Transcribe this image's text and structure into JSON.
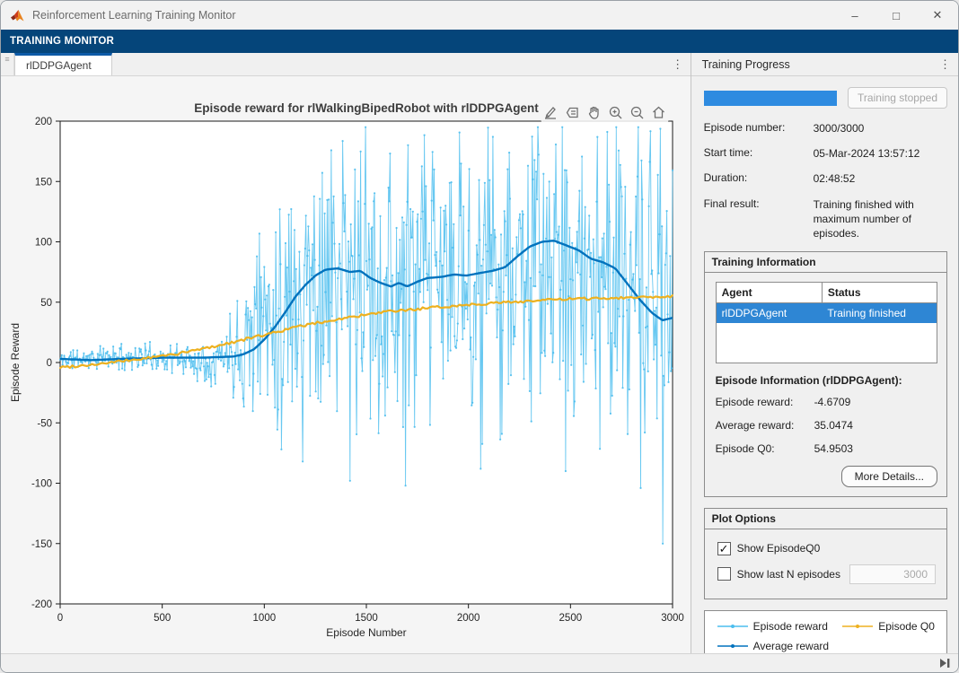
{
  "window": {
    "title": "Reinforcement Learning Training Monitor",
    "controls": {
      "minimize": "–",
      "maximize": "□",
      "close": "✕"
    }
  },
  "ribbon": {
    "label": "TRAINING MONITOR"
  },
  "tabs": {
    "active_tab": "rlDDPGAgent",
    "menu_icon": "⋮",
    "grip_icon": "≡"
  },
  "chart_data": {
    "type": "line",
    "title": "Episode reward for rlWalkingBipedRobot with rlDDPGAgent",
    "xlabel": "Episode Number",
    "ylabel": "Episode Reward",
    "xlim": [
      0,
      3000
    ],
    "ylim": [
      -200,
      200
    ],
    "xticks": [
      0,
      500,
      1000,
      1500,
      2000,
      2500,
      3000
    ],
    "yticks": [
      -200,
      -150,
      -100,
      -50,
      0,
      50,
      100,
      150,
      200
    ],
    "grid": false,
    "box": true,
    "legend_position": "side-panel-bottom",
    "series": [
      {
        "name": "Episode reward",
        "color": "#4DBEEE",
        "render": "noisy",
        "seed": 11,
        "step": 4,
        "envelope": [
          [
            0,
            2,
            8
          ],
          [
            200,
            4,
            9
          ],
          [
            400,
            5,
            10
          ],
          [
            600,
            3,
            13
          ],
          [
            700,
            1,
            16
          ],
          [
            800,
            6,
            24
          ],
          [
            900,
            18,
            50
          ],
          [
            1000,
            42,
            80
          ],
          [
            1100,
            55,
            95
          ],
          [
            1200,
            65,
            105
          ],
          [
            1350,
            70,
            112
          ],
          [
            1500,
            65,
            115
          ],
          [
            1700,
            62,
            118
          ],
          [
            1900,
            70,
            115
          ],
          [
            2100,
            75,
            113
          ],
          [
            2300,
            80,
            110
          ],
          [
            2500,
            76,
            114
          ],
          [
            2700,
            70,
            120
          ],
          [
            2850,
            58,
            128
          ],
          [
            3000,
            45,
            132
          ]
        ],
        "spikes": [
          [
            1085,
            -72
          ],
          [
            1190,
            -82
          ],
          [
            1420,
            -98
          ],
          [
            1692,
            -102
          ],
          [
            2060,
            -88
          ],
          [
            2476,
            -90
          ],
          [
            2845,
            -104
          ],
          [
            2952,
            -150
          ],
          [
            2996,
            -4.6709
          ]
        ],
        "final_value": -4.6709
      },
      {
        "name": "Average reward",
        "color": "#0072BD",
        "render": "smooth",
        "width": 2.4,
        "points": [
          [
            0,
            3
          ],
          [
            150,
            2
          ],
          [
            300,
            3
          ],
          [
            500,
            4
          ],
          [
            700,
            4
          ],
          [
            850,
            5
          ],
          [
            900,
            7
          ],
          [
            950,
            11
          ],
          [
            1000,
            19
          ],
          [
            1050,
            29
          ],
          [
            1100,
            41
          ],
          [
            1150,
            54
          ],
          [
            1200,
            64
          ],
          [
            1250,
            72
          ],
          [
            1300,
            77
          ],
          [
            1360,
            78
          ],
          [
            1420,
            75
          ],
          [
            1470,
            76
          ],
          [
            1520,
            70
          ],
          [
            1570,
            66
          ],
          [
            1620,
            63
          ],
          [
            1660,
            66
          ],
          [
            1700,
            63
          ],
          [
            1750,
            67
          ],
          [
            1800,
            70
          ],
          [
            1870,
            71
          ],
          [
            1930,
            73
          ],
          [
            1990,
            72
          ],
          [
            2050,
            74
          ],
          [
            2120,
            76
          ],
          [
            2180,
            79
          ],
          [
            2240,
            88
          ],
          [
            2300,
            96
          ],
          [
            2360,
            100
          ],
          [
            2420,
            101
          ],
          [
            2480,
            97
          ],
          [
            2540,
            93
          ],
          [
            2600,
            86
          ],
          [
            2660,
            83
          ],
          [
            2720,
            78
          ],
          [
            2780,
            65
          ],
          [
            2840,
            52
          ],
          [
            2900,
            41
          ],
          [
            2950,
            35
          ],
          [
            3000,
            37
          ]
        ],
        "final_value": 35.0474
      },
      {
        "name": "Episode Q0",
        "color": "#EDB120",
        "render": "smooth",
        "width": 2.2,
        "jitter": 1.1,
        "markers": true,
        "points": [
          [
            0,
            -4
          ],
          [
            200,
            -1
          ],
          [
            400,
            3
          ],
          [
            600,
            8
          ],
          [
            800,
            15
          ],
          [
            1000,
            23
          ],
          [
            1200,
            31
          ],
          [
            1400,
            37
          ],
          [
            1600,
            42
          ],
          [
            1800,
            45
          ],
          [
            2000,
            48
          ],
          [
            2200,
            50
          ],
          [
            2400,
            52
          ],
          [
            2600,
            53
          ],
          [
            2800,
            54
          ],
          [
            3000,
            55
          ]
        ],
        "final_value": 54.9503
      }
    ]
  },
  "side_panel": {
    "header": "Training Progress",
    "menu_icon": "⋮",
    "progress": {
      "percent": 100,
      "status_button": "Training stopped"
    },
    "info_rows": [
      {
        "label": "Episode number:",
        "value": "3000/3000"
      },
      {
        "label": "Start time:",
        "value": "05-Mar-2024 13:57:12"
      },
      {
        "label": "Duration:",
        "value": "02:48:52"
      },
      {
        "label": "Final result:",
        "value": "Training finished with maximum number of episodes."
      }
    ],
    "training_information": {
      "title": "Training Information",
      "columns": {
        "agent": "Agent",
        "status": "Status"
      },
      "rows": [
        {
          "agent": "rlDDPGAgent",
          "status": "Training finished",
          "selected": true
        }
      ]
    },
    "episode_information": {
      "title": "Episode Information (rlDDPGAgent):",
      "rows": [
        {
          "label": "Episode reward:",
          "value": "-4.6709"
        },
        {
          "label": "Average reward:",
          "value": "35.0474"
        },
        {
          "label": "Episode Q0:",
          "value": "54.9503"
        }
      ],
      "more_details_button": "More Details..."
    },
    "plot_options": {
      "title": "Plot Options",
      "show_episode_q0": {
        "label": "Show EpisodeQ0",
        "checked": true
      },
      "show_last_n": {
        "label": "Show last N episodes",
        "checked": false,
        "value": "3000"
      }
    },
    "legend": [
      {
        "label": "Episode reward",
        "color": "#4DBEEE"
      },
      {
        "label": "Average reward",
        "color": "#0072BD"
      },
      {
        "label": "Episode Q0",
        "color": "#EDB120"
      }
    ]
  },
  "colors": {
    "ribbon_navy": "#05457A",
    "tab_accent": "#0D5AA7",
    "progress_blue": "#2E8BE0",
    "selection_blue": "#2E86D4",
    "panel_bg": "#F0F0F0",
    "chart_bg": "#F5F5F5"
  }
}
